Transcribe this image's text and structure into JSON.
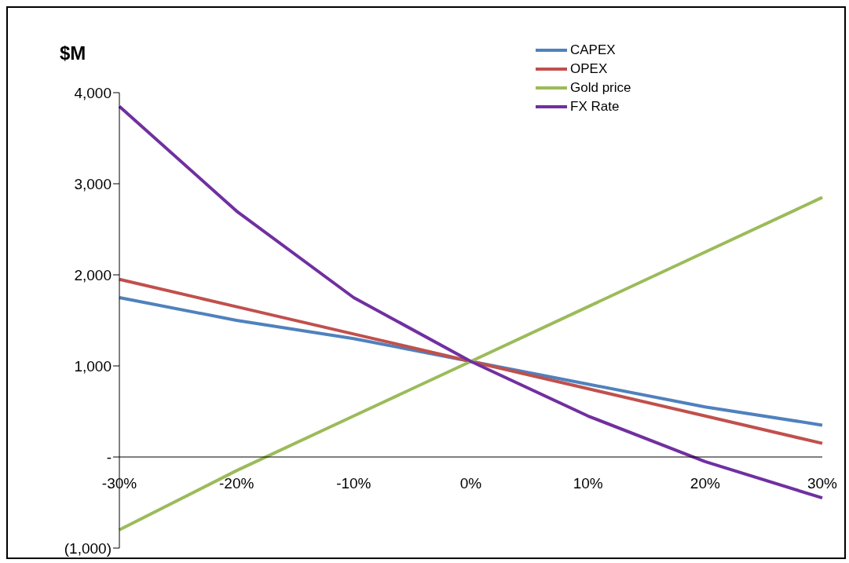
{
  "chart_data": {
    "type": "line",
    "ylabel": "$M",
    "categories": [
      "-30%",
      "-20%",
      "-10%",
      "0%",
      "10%",
      "20%",
      "30%"
    ],
    "series": [
      {
        "name": "CAPEX",
        "color": "#4f81bd",
        "values": [
          1750,
          1500,
          1300,
          1050,
          800,
          550,
          350
        ]
      },
      {
        "name": "OPEX",
        "color": "#c0504d",
        "values": [
          1950,
          1650,
          1350,
          1050,
          750,
          450,
          150
        ]
      },
      {
        "name": "Gold price",
        "color": "#9bbb59",
        "values": [
          -800,
          -150,
          450,
          1050,
          1650,
          2250,
          2850
        ]
      },
      {
        "name": "FX Rate",
        "color": "#7030a0",
        "values": [
          3850,
          2700,
          1750,
          1050,
          450,
          -50,
          -450
        ]
      }
    ],
    "ylim": [
      -1000,
      4000
    ],
    "yticks": [
      {
        "value": -1000,
        "label": "(1,000)"
      },
      {
        "value": 0,
        "label": "-"
      },
      {
        "value": 1000,
        "label": "1,000"
      },
      {
        "value": 2000,
        "label": "2,000"
      },
      {
        "value": 3000,
        "label": "3,000"
      },
      {
        "value": 4000,
        "label": "4,000"
      }
    ],
    "grid": false,
    "legend": "top right",
    "marker": "none",
    "line_style": "solid"
  }
}
